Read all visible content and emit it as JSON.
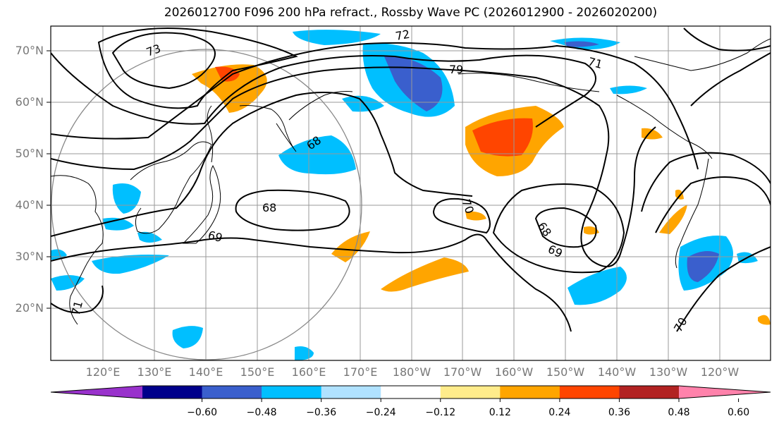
{
  "title": "2026012700 F096 200 hPa refract., Rossby Wave PC (2026012900 - 2026020200)",
  "map": {
    "lat_labels": [
      "70°N",
      "60°N",
      "50°N",
      "40°N",
      "30°N",
      "20°N"
    ],
    "lon_labels": [
      "120°E",
      "130°E",
      "140°E",
      "150°E",
      "160°E",
      "170°E",
      "180°W",
      "170°W",
      "160°W",
      "150°W",
      "140°W",
      "130°W",
      "120°W"
    ],
    "contour_labels": [
      "73",
      "72",
      "79",
      "71",
      "68",
      "68",
      "69",
      "70",
      "68",
      "69",
      "70",
      "71"
    ]
  },
  "colorbar": {
    "colors": [
      "#9932cc",
      "#00008b",
      "#3a5fcd",
      "#00bfff",
      "#b0e2ff",
      "#ffffff",
      "#ffec8b",
      "#ffa500",
      "#ff4500",
      "#b22222",
      "#ff82ab"
    ],
    "ticks": [
      "−0.60",
      "−0.48",
      "−0.36",
      "−0.24",
      "−0.12",
      "0.12",
      "0.24",
      "0.36",
      "0.48",
      "0.60"
    ]
  }
}
